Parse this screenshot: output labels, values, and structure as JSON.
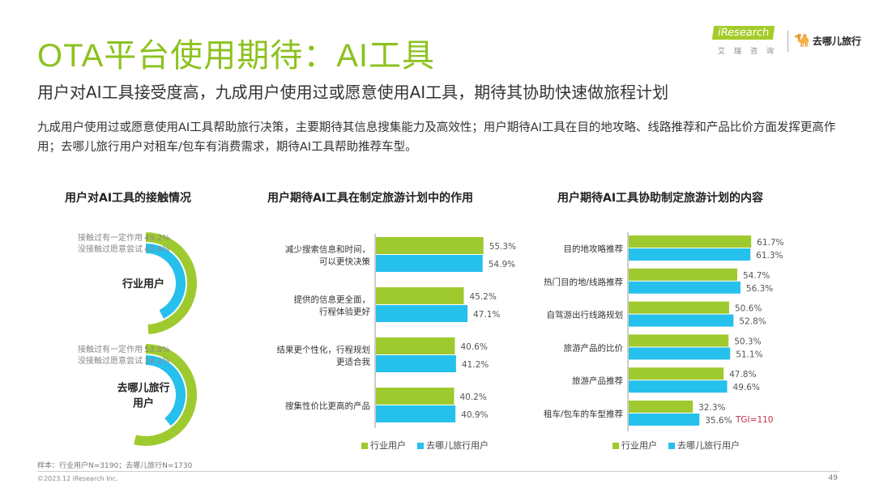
{
  "title": "OTA平台使用期待：AI工具",
  "subtitle": "用户对AI工具接受度高，九成用户使用过或愿意使用AI工具，期待其协助快速做旅程计划",
  "summary": "九成用户使用过或愿意使用AI工具帮助旅行决策，主要期待其信息搜集能力及高效性；用户期待AI工具在目的地攻略、线路推荐和产品比价方面发挥更高作用；去哪儿旅行用户对租车/包车有消费需求，期待AI工具帮助推荐车型。",
  "logo": {
    "iresearch": "iResearch",
    "iresearch_cn": "艾瑞咨询",
    "qunar": "去哪儿旅行"
  },
  "colors": {
    "green": "#9fca2f",
    "blue": "#26c0ec",
    "title": "#8cc21f",
    "tgi": "#c0304a"
  },
  "chart_data": [
    {
      "type": "radial-bar",
      "title": "用户对AI工具的接触情况",
      "groups": [
        {
          "name": "行业用户",
          "items": [
            {
              "label": "接触过有一定作用",
              "value": 49.2,
              "display": "49.2%"
            },
            {
              "label": "没接触过愿意尝试",
              "value": 42.6,
              "display": "42.6%"
            }
          ]
        },
        {
          "name": "去哪儿旅行用户",
          "items": [
            {
              "label": "接触过有一定作用",
              "value": 53.8,
              "display": "53.8%"
            },
            {
              "label": "没接触过愿意尝试",
              "value": 39.2,
              "display": "39.2%"
            }
          ]
        }
      ]
    },
    {
      "type": "bar",
      "orientation": "horizontal",
      "title": "用户期待AI工具在制定旅游计划中的作用",
      "categories": [
        [
          "减少搜索信息和时间，",
          "可以更快决策"
        ],
        [
          "提供的信息更全面，",
          "行程体验更好"
        ],
        [
          "结果更个性化，行程规划",
          "更适合我"
        ],
        [
          "搜集性价比更高的产品"
        ]
      ],
      "series": [
        {
          "name": "行业用户",
          "values": [
            55.3,
            45.2,
            40.6,
            40.2
          ]
        },
        {
          "name": "去哪儿旅行用户",
          "values": [
            54.9,
            47.1,
            41.2,
            40.9
          ]
        }
      ],
      "legend": [
        "行业用户",
        "去哪儿旅行用户"
      ],
      "legend_position": "bottom"
    },
    {
      "type": "bar",
      "orientation": "horizontal",
      "title": "用户期待AI工具协助制定旅游计划的内容",
      "categories": [
        [
          "目的地攻略推荐"
        ],
        [
          "热门目的地/线路推荐"
        ],
        [
          "自驾游出行线路规划"
        ],
        [
          "旅游产品的比价"
        ],
        [
          "旅游产品推荐"
        ],
        [
          "租车/包车的车型推荐"
        ]
      ],
      "series": [
        {
          "name": "行业用户",
          "values": [
            61.7,
            54.7,
            50.6,
            50.3,
            47.8,
            32.3
          ]
        },
        {
          "name": "去哪儿旅行用户",
          "values": [
            61.3,
            56.3,
            52.8,
            51.1,
            49.6,
            35.6
          ]
        }
      ],
      "annotation": "TGI=110",
      "legend": [
        "行业用户",
        "去哪儿旅行用户"
      ],
      "legend_position": "bottom"
    }
  ],
  "footer": {
    "sample": "样本：行业用户N=3190；去哪儿旅行N=1730",
    "copyright": "©2023.12 iResearch Inc.",
    "page": "49"
  }
}
